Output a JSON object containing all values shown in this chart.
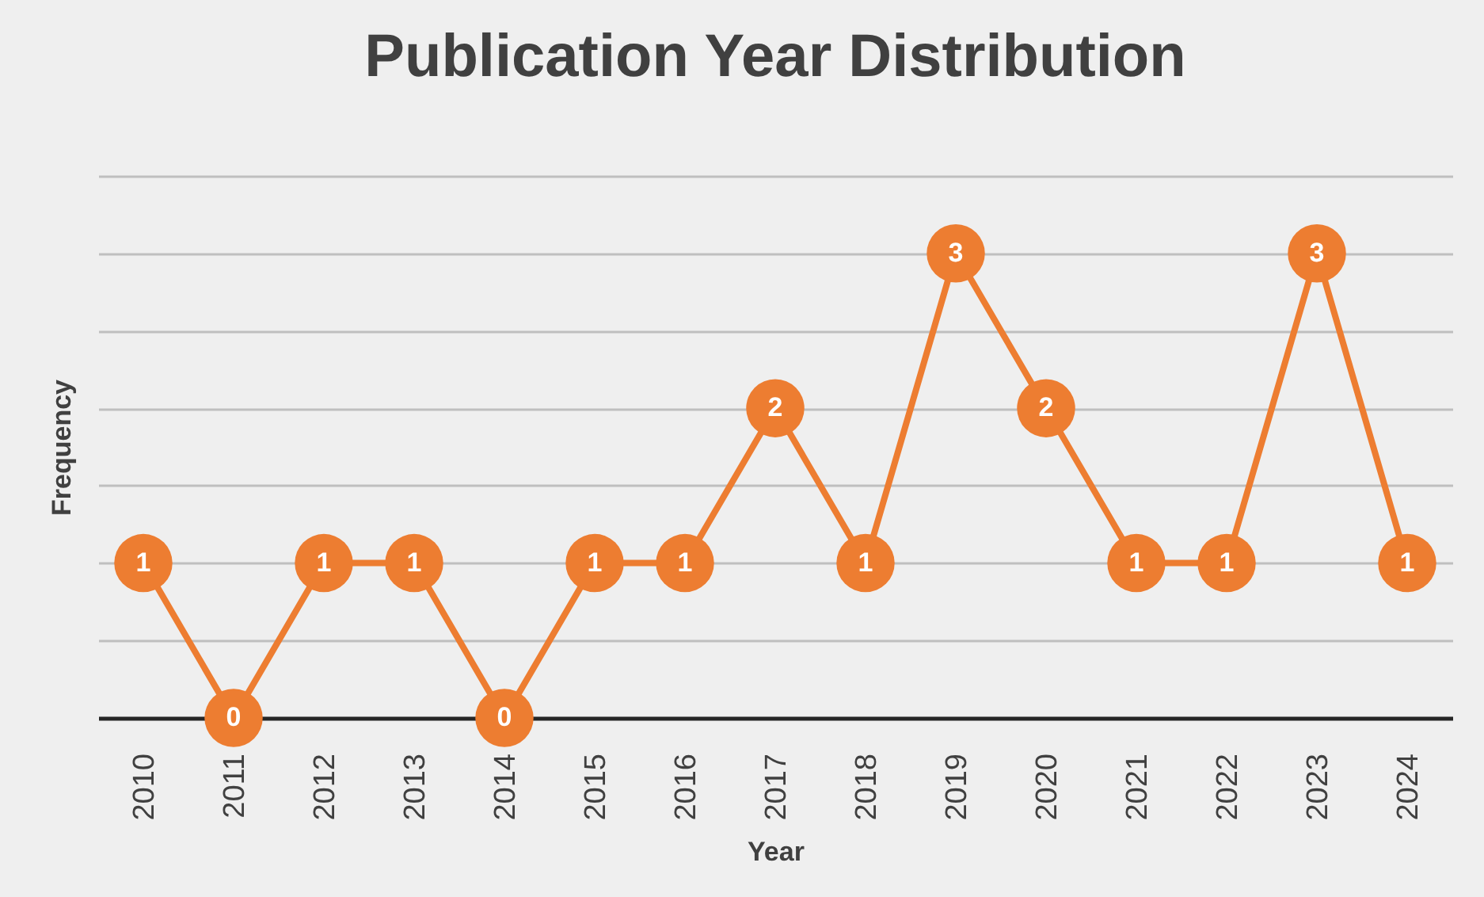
{
  "chart_data": {
    "type": "line",
    "title": "Publication Year Distribution",
    "xlabel": "Year",
    "ylabel": "Frequency",
    "categories": [
      "2010",
      "2011",
      "2012",
      "2013",
      "2014",
      "2015",
      "2016",
      "2017",
      "2018",
      "2019",
      "2020",
      "2021",
      "2022",
      "2023",
      "2024"
    ],
    "series": [
      {
        "color": "#ed7d31",
        "values": [
          1,
          0,
          1,
          1,
          0,
          1,
          1,
          2,
          1,
          3,
          2,
          1,
          1,
          3,
          1
        ]
      }
    ],
    "ylim": [
      0,
      3.5
    ],
    "yticks": [
      {
        "value": 0,
        "label": null
      },
      {
        "value": 0.5,
        "label": null
      },
      {
        "value": 1,
        "label": null
      },
      {
        "value": 1.5,
        "label": null
      },
      {
        "value": 2,
        "label": null
      },
      {
        "value": 2.5,
        "label": null
      },
      {
        "value": 3,
        "label": null
      },
      {
        "value": 3.5,
        "label": null
      }
    ],
    "grid": "y",
    "tick_labels": "x",
    "data_labels": true,
    "marker": "circle",
    "line_style": "solid"
  }
}
